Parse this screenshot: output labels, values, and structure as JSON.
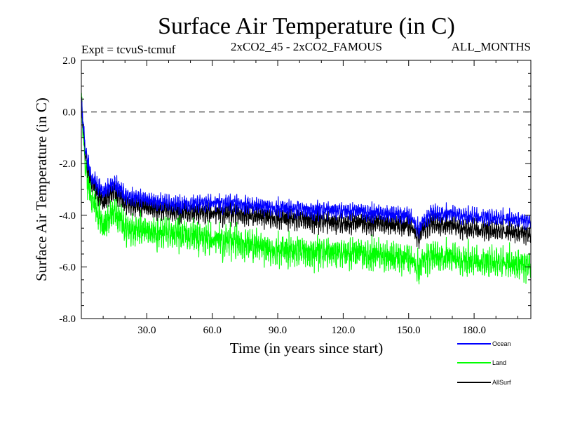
{
  "chart_data": {
    "type": "line",
    "title": "Surface Air Temperature (in C)",
    "experiment_label": "Expt = tcvuS-tcmuf",
    "comparison_label": "2xCO2_45 - 2xCO2_FAMOUS",
    "period_label": "ALL_MONTHS",
    "xlabel": "Time (in years since start)",
    "ylabel": "Surface Air Temperature (in C)",
    "xlim": [
      0,
      206
    ],
    "ylim": [
      -8.0,
      2.0
    ],
    "x_ticks": [
      30.0,
      60.0,
      90.0,
      120.0,
      150.0,
      180.0
    ],
    "x_tick_labels": [
      "30.0",
      "60.0",
      "90.0",
      "120.0",
      "150.0",
      "180.0"
    ],
    "y_ticks": [
      2.0,
      0.0,
      -2.0,
      -4.0,
      -6.0,
      -8.0
    ],
    "y_tick_labels": [
      "2.0",
      "0.0",
      "-2.0",
      "-4.0",
      "-6.0",
      "-8.0"
    ],
    "reference_line": {
      "y": 0.0,
      "style": "dashed"
    },
    "legend_placement": "bottom-right",
    "monthly_samples": true,
    "series": [
      {
        "name": "Ocean",
        "color": "#0000ff",
        "x": [
          0,
          2,
          5,
          10,
          15,
          20,
          30,
          45,
          60,
          75,
          90,
          105,
          120,
          135,
          150,
          155,
          160,
          175,
          190,
          206
        ],
        "y": [
          0.3,
          -1.6,
          -2.6,
          -3.1,
          -2.8,
          -3.2,
          -3.4,
          -3.6,
          -3.5,
          -3.6,
          -3.7,
          -3.8,
          -3.8,
          -3.9,
          -4.0,
          -4.5,
          -3.9,
          -4.0,
          -4.1,
          -4.2
        ]
      },
      {
        "name": "Land",
        "color": "#00ff00",
        "x": [
          0,
          2,
          5,
          10,
          15,
          20,
          30,
          45,
          60,
          75,
          90,
          105,
          120,
          135,
          150,
          155,
          160,
          175,
          190,
          206
        ],
        "y": [
          0.4,
          -2.2,
          -3.3,
          -4.3,
          -3.8,
          -4.3,
          -4.5,
          -4.6,
          -4.8,
          -5.0,
          -5.2,
          -5.3,
          -5.3,
          -5.4,
          -5.5,
          -5.9,
          -5.4,
          -5.6,
          -5.7,
          -5.8
        ]
      },
      {
        "name": "AllSurf",
        "color": "#000000",
        "x": [
          0,
          2,
          5,
          10,
          15,
          20,
          30,
          45,
          60,
          75,
          90,
          105,
          120,
          135,
          150,
          155,
          160,
          175,
          190,
          206
        ],
        "y": [
          0.3,
          -1.8,
          -2.8,
          -3.5,
          -3.1,
          -3.5,
          -3.7,
          -3.9,
          -3.9,
          -4.0,
          -4.1,
          -4.2,
          -4.3,
          -4.3,
          -4.4,
          -4.8,
          -4.3,
          -4.5,
          -4.6,
          -4.7
        ]
      }
    ]
  }
}
